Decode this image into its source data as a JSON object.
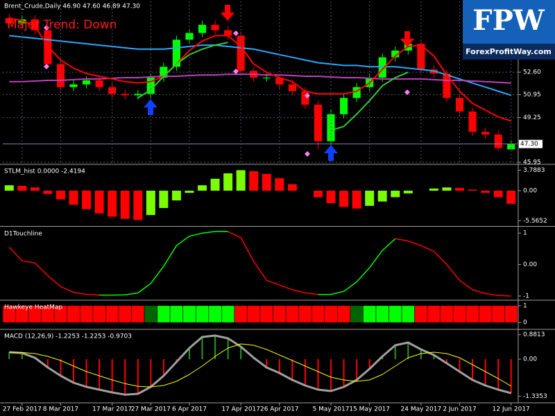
{
  "logo": {
    "title": "FPW",
    "subtitle": "ForexProfitWay.com"
  },
  "chart_data": [
    {
      "type": "candlestick",
      "title": "Brent_Crude,Daily 46.90 47.60 46.89 47.30",
      "annotation": "Major Trend: Down",
      "open": [
        56.6,
        56.2,
        56.5,
        55.7,
        53.2,
        51.5,
        51.7,
        52.0,
        51.5,
        51.0,
        50.9,
        51.0,
        52.2,
        53.0,
        55.0,
        55.5,
        56.1,
        55.7,
        55.3,
        52.7,
        52.2,
        52.2,
        51.7,
        51.2,
        50.2,
        47.5,
        49.5,
        50.7,
        51.5,
        52.2,
        53.7,
        54.2,
        54.7,
        52.8,
        52.5,
        50.7,
        49.7,
        48.2,
        48.0,
        46.9
      ],
      "high": [
        56.9,
        56.8,
        56.8,
        56.0,
        53.5,
        52.0,
        52.3,
        52.3,
        51.8,
        51.3,
        51.3,
        52.5,
        53.3,
        55.3,
        55.8,
        56.4,
        56.4,
        56.0,
        55.6,
        53.0,
        52.5,
        52.5,
        52.0,
        51.5,
        50.5,
        49.8,
        51.0,
        51.8,
        52.5,
        54.0,
        54.5,
        55.0,
        55.0,
        53.1,
        52.8,
        51.0,
        50.0,
        48.5,
        48.3,
        47.6
      ],
      "low": [
        55.9,
        55.9,
        55.4,
        52.9,
        51.2,
        51.2,
        51.4,
        51.2,
        50.7,
        50.6,
        50.6,
        50.7,
        51.9,
        52.7,
        54.7,
        55.2,
        55.4,
        55.0,
        52.4,
        51.9,
        51.9,
        51.4,
        50.9,
        49.9,
        46.9,
        47.2,
        49.2,
        50.4,
        51.2,
        51.9,
        53.4,
        53.9,
        52.5,
        52.2,
        50.4,
        49.4,
        47.9,
        47.7,
        46.8,
        46.89
      ],
      "close": [
        56.2,
        56.5,
        55.7,
        53.2,
        51.5,
        51.7,
        52.0,
        51.5,
        51.0,
        50.9,
        51.0,
        52.2,
        53.0,
        55.0,
        55.5,
        56.1,
        55.7,
        55.3,
        52.7,
        52.2,
        52.2,
        51.7,
        51.2,
        50.2,
        47.5,
        49.5,
        50.7,
        51.5,
        52.2,
        53.7,
        54.2,
        54.7,
        52.8,
        52.5,
        50.7,
        49.7,
        48.2,
        48.0,
        47.0,
        47.3
      ],
      "up_color": "#00ff00",
      "down_color": "#ff0000",
      "series": [
        {
          "color": "#2aa8ff",
          "values": [
            55.3,
            55.2,
            55.1,
            55.0,
            54.9,
            54.8,
            54.7,
            54.6,
            54.5,
            54.4,
            54.3,
            54.3,
            54.3,
            54.4,
            54.5,
            54.6,
            54.6,
            54.5,
            54.4,
            54.3,
            54.1,
            53.9,
            53.7,
            53.5,
            53.3,
            53.2,
            53.1,
            53.1,
            53.0,
            53.0,
            53.0,
            52.9,
            52.8,
            52.7,
            52.4,
            52.1,
            51.8,
            51.5,
            51.2,
            50.9
          ]
        },
        {
          "color": "#c040c0",
          "values": [
            51.9,
            51.9,
            51.95,
            52.0,
            52.0,
            52.05,
            52.1,
            52.1,
            52.15,
            52.2,
            52.2,
            52.25,
            52.3,
            52.3,
            52.35,
            52.4,
            52.4,
            52.45,
            52.45,
            52.45,
            52.4,
            52.4,
            52.35,
            52.3,
            52.3,
            52.25,
            52.2,
            52.2,
            52.15,
            52.1,
            52.1,
            52.1,
            52.1,
            52.05,
            52.0,
            52.0,
            51.95,
            51.9,
            51.85,
            51.8
          ]
        },
        {
          "color": "#ff0000",
          "values": [
            56.6,
            56.4,
            56.0,
            54.5,
            53.5,
            52.9,
            52.5,
            52.3,
            52.1,
            51.9,
            51.8,
            51.9,
            52.3,
            53.2,
            54.2,
            54.9,
            55.3,
            55.3,
            54.5,
            53.2,
            52.6,
            52.2,
            51.9,
            51.2,
            51.0,
            51.0,
            51.0,
            51.2,
            51.8,
            52.8,
            53.8,
            54.5,
            54.6,
            53.8,
            52.4,
            51.2,
            50.3,
            49.8,
            49.3,
            49.0
          ]
        },
        {
          "color": "#32cd32",
          "values": [
            null,
            null,
            null,
            null,
            null,
            null,
            null,
            null,
            null,
            null,
            50.7,
            51.3,
            52.3,
            53.2,
            53.9,
            54.3,
            54.6,
            54.8,
            null,
            null,
            null,
            null,
            null,
            null,
            null,
            48.3,
            48.6,
            49.5,
            50.5,
            51.6,
            52.2,
            52.6,
            null,
            null,
            null,
            null,
            null,
            null,
            null,
            null
          ]
        }
      ],
      "ylim": [
        45.85,
        57.83
      ],
      "yticks": [
        {
          "value": 52.6,
          "label": "52.60"
        },
        {
          "value": 50.95,
          "label": "50.95"
        },
        {
          "value": 49.25,
          "label": "49.25"
        },
        {
          "value": 45.95,
          "label": "45.95"
        }
      ],
      "last_price": {
        "value": 47.3,
        "label": "47.30"
      },
      "grid": true
    },
    {
      "type": "bar",
      "title": "STLM_hist 0.0000 -2.4194",
      "values": [
        1.0,
        0.9,
        0.6,
        -0.6,
        -1.6,
        -2.6,
        -3.4,
        -4.2,
        -4.8,
        -5.2,
        -5.4,
        -4.5,
        -3.2,
        -1.8,
        -0.4,
        1.0,
        2.2,
        3.2,
        3.7883,
        3.6,
        3.1,
        2.3,
        1.2,
        0.0,
        -1.2,
        -2.3,
        -3.0,
        -3.3,
        -2.8,
        -2.0,
        -1.2,
        -0.5,
        0.0,
        0.4,
        0.6,
        0.5,
        0.2,
        -0.4,
        -1.2,
        -2.4194
      ],
      "up_color": "#7cfc00",
      "down_color": "#ff0000",
      "ylim": [
        -6.4,
        4.74
      ],
      "yticks": [
        3.7883,
        {
          "value": 0,
          "label": "0.00"
        },
        -5.5652
      ]
    },
    {
      "type": "line",
      "title": "D1Touchline",
      "values": [
        0.55,
        0.12,
        0.05,
        -0.35,
        -0.7,
        -0.88,
        -0.95,
        -0.97,
        -0.97,
        -0.96,
        -0.9,
        -0.6,
        -0.05,
        0.6,
        0.9,
        1.0,
        1.05,
        1.05,
        0.85,
        0.1,
        -0.5,
        -0.65,
        -0.8,
        -0.9,
        -0.95,
        -0.95,
        -0.85,
        -0.55,
        -0.1,
        0.45,
        0.82,
        0.75,
        0.6,
        0.42,
        0.0,
        -0.5,
        -0.8,
        -0.92,
        -0.98,
        -1.0
      ],
      "up_color": "#00ff00",
      "down_color": "#ff0000",
      "ylim": [
        -1.11,
        1.18
      ],
      "yticks": [
        1,
        {
          "value": 0,
          "label": "0.00"
        },
        -1
      ]
    },
    {
      "type": "heatmap",
      "title": "Hawkeye HeatMap",
      "values": [
        1,
        1,
        1,
        1,
        1,
        1,
        1,
        1,
        1,
        1,
        1,
        1,
        1,
        1,
        1,
        1,
        1,
        1,
        1,
        1,
        1,
        1,
        1,
        1,
        1,
        1,
        1,
        1,
        1,
        1,
        1,
        1,
        1,
        1,
        1,
        1,
        1,
        1,
        1,
        1
      ],
      "colors": [
        "#ff0000",
        "#ff0000",
        "#ff0000",
        "#ff0000",
        "#ff0000",
        "#ff0000",
        "#ff0000",
        "#ff0000",
        "#ff0000",
        "#ff0000",
        "#ff0000",
        "#006400",
        "#00ff00",
        "#00ff00",
        "#00ff00",
        "#00ff00",
        "#00ff00",
        "#00ff00",
        "#ff0000",
        "#ff0000",
        "#ff0000",
        "#ff0000",
        "#ff0000",
        "#ff0000",
        "#ff0000",
        "#ff0000",
        "#ff0000",
        "#006400",
        "#00ff00",
        "#00ff00",
        "#00ff00",
        "#00ff00",
        "#ff0000",
        "#ff0000",
        "#ff0000",
        "#ff0000",
        "#ff0000",
        "#ff0000",
        "#ff0000",
        "#ff0000"
      ],
      "ylim": [
        -0.36,
        1.28
      ],
      "yticks": [
        1,
        0
      ]
    },
    {
      "type": "macd",
      "title": "MACD (12,26,9) -1.2253 -1.2253 -0.9703",
      "categories": [
        null,
        "27 Feb 2017",
        null,
        null,
        "8 Mar 2017",
        null,
        null,
        null,
        "17 Mar 2017",
        null,
        null,
        "27 Mar 2017",
        null,
        null,
        "6 Apr 2017",
        null,
        null,
        null,
        "17 Apr 2017",
        null,
        null,
        "26 Apr 2017",
        null,
        null,
        null,
        "5 May 2017",
        null,
        null,
        "15 May 2017",
        null,
        null,
        null,
        "24 May 2017",
        null,
        null,
        "2 Jun 2017",
        null,
        null,
        null,
        "12 Jun 2017"
      ],
      "series": [
        {
          "color": "#a0a0a0",
          "values": [
            0.25,
            0.22,
            0.05,
            -0.3,
            -0.6,
            -0.85,
            -1.0,
            -1.1,
            -1.2,
            -1.28,
            -1.25,
            -1.0,
            -0.6,
            -0.1,
            0.4,
            0.8,
            0.85,
            0.75,
            0.45,
            0.05,
            -0.3,
            -0.5,
            -0.75,
            -0.95,
            -1.1,
            -1.15,
            -1.0,
            -0.75,
            -0.35,
            0.1,
            0.5,
            0.6,
            0.35,
            0.15,
            -0.15,
            -0.45,
            -0.75,
            -0.95,
            -1.1,
            -1.2253
          ]
        },
        {
          "color": "#ffff00",
          "values": [
            0.25,
            0.24,
            0.2,
            0.1,
            -0.05,
            -0.25,
            -0.45,
            -0.6,
            -0.75,
            -0.88,
            -0.98,
            -1.0,
            -0.95,
            -0.8,
            -0.55,
            -0.25,
            0.1,
            0.4,
            0.55,
            0.5,
            0.35,
            0.15,
            -0.05,
            -0.25,
            -0.45,
            -0.65,
            -0.75,
            -0.8,
            -0.75,
            -0.55,
            -0.25,
            0.05,
            0.2,
            0.25,
            0.2,
            0.05,
            -0.2,
            -0.45,
            -0.7,
            -0.9703
          ]
        }
      ],
      "up_color": "#1f9e1f",
      "down_color": "#ff0000",
      "ylim": [
        -1.55,
        1.05
      ],
      "yticks": [
        0.8813,
        {
          "value": 0,
          "label": "0.00"
        },
        -1.3353
      ]
    }
  ]
}
